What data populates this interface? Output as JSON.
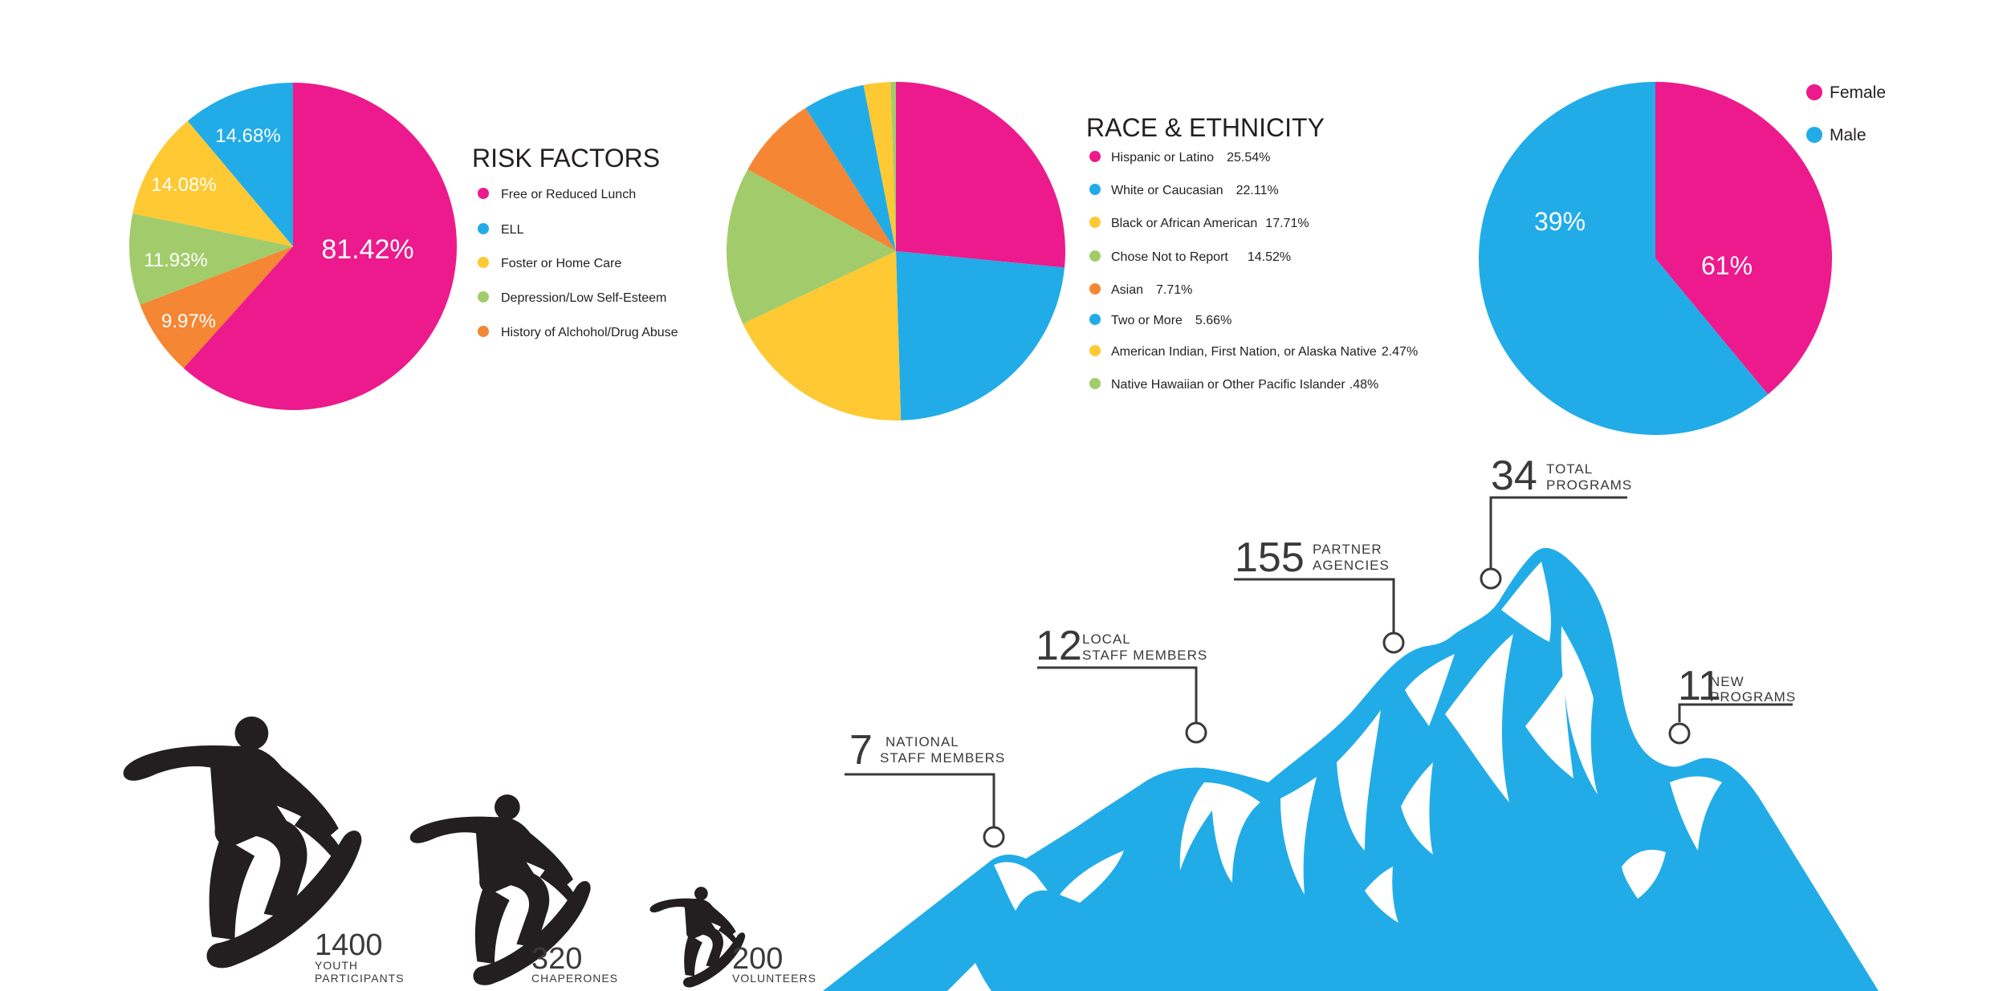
{
  "colors": {
    "pink": "#EC1A8C",
    "blue": "#21ACE8",
    "yellow": "#FFC933",
    "green": "#A2CC6B",
    "orange": "#F58634",
    "dark": "#231F20"
  },
  "chart_data": [
    {
      "type": "pie",
      "title": "RISK FACTORS",
      "legend": [
        "Free or Reduced Lunch",
        "ELL",
        "Foster or Home Care",
        "Depression/Low Self-Esteem",
        "History of Alchohol/Drug Abuse"
      ],
      "slices": [
        {
          "value": 81.42,
          "label": "81.42%",
          "color": "#EC1A8C"
        },
        {
          "value": 9.97,
          "label": "9.97%",
          "color": "#F58634"
        },
        {
          "value": 11.93,
          "label": "11.93%",
          "color": "#A2CC6B"
        },
        {
          "value": 14.08,
          "label": "14.08%",
          "color": "#FFC933"
        },
        {
          "value": 14.68,
          "label": "14.68%",
          "color": "#21ACE8"
        }
      ],
      "legend_colors": [
        "#EC1A8C",
        "#21ACE8",
        "#FFC933",
        "#A2CC6B",
        "#F58634"
      ]
    },
    {
      "type": "pie",
      "title": "RACE & ETHNICITY",
      "slices": [
        {
          "name": "Hispanic or Latino",
          "value": 25.54,
          "label": "25.54%",
          "color": "#EC1A8C"
        },
        {
          "name": "White or Caucasian",
          "value": 22.11,
          "label": "22.11%",
          "color": "#21ACE8"
        },
        {
          "name": "Black or African American",
          "value": 17.71,
          "label": "17.71%",
          "color": "#FFC933"
        },
        {
          "name": "Chose Not to Report",
          "value": 14.52,
          "label": "14.52%",
          "color": "#A2CC6B"
        },
        {
          "name": "Asian",
          "value": 7.71,
          "label": "7.71%",
          "color": "#F58634"
        },
        {
          "name": "Two or More",
          "value": 5.66,
          "label": "5.66%",
          "color": "#21ACE8"
        },
        {
          "name": "American Indian, First Nation, or Alaska Native",
          "value": 2.47,
          "label": "2.47%",
          "color": "#FFC933"
        },
        {
          "name": "Native Hawaiian or Other Pacific Islander",
          "value": 0.48,
          "label": ".48%",
          "color": "#A2CC6B"
        }
      ]
    },
    {
      "type": "pie",
      "title": "",
      "slices": [
        {
          "name": "Female",
          "value": 39,
          "label": "39%",
          "color": "#EC1A8C"
        },
        {
          "name": "Male",
          "value": 61,
          "label": "61%",
          "color": "#21ACE8"
        }
      ]
    }
  ],
  "participants": [
    {
      "number": "1400",
      "line1": "YOUTH",
      "line2": "PARTICIPANTS"
    },
    {
      "number": "320",
      "line1": "CHAPERONES",
      "line2": ""
    },
    {
      "number": "200",
      "line1": "VOLUNTEERS",
      "line2": ""
    }
  ],
  "mountain_stats": [
    {
      "number": "7",
      "line1": "NATIONAL",
      "line2": "STAFF MEMBERS"
    },
    {
      "number": "12",
      "line1": "LOCAL",
      "line2": "STAFF MEMBERS"
    },
    {
      "number": "155",
      "line1": "PARTNER",
      "line2": "AGENCIES"
    },
    {
      "number": "34",
      "line1": "TOTAL",
      "line2": "PROGRAMS"
    },
    {
      "number": "11",
      "line1": "NEW",
      "line2": "PROGRAMS"
    }
  ],
  "icons": {
    "snowboarder": "snowboarder-silhouette-icon",
    "mountain": "mountain-illustration"
  }
}
